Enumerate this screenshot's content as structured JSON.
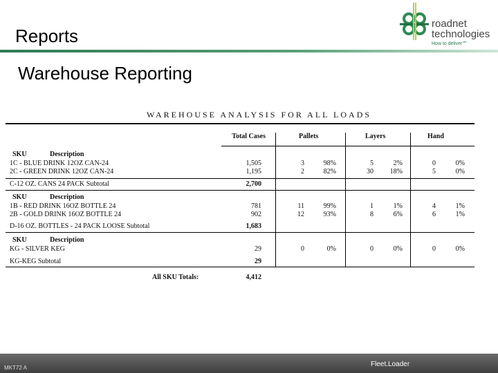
{
  "header": {
    "title": "Reports",
    "subtitle": "Warehouse Reporting"
  },
  "logo": {
    "name": "roadnet",
    "line2": "technologies",
    "tagline": "How to deliver℠",
    "brand_color": "#2e7a55"
  },
  "report": {
    "title": "WAREHOUSE ANALYSIS FOR ALL LOADS",
    "columns": [
      "Total Cases",
      "Pallets",
      "Layers",
      "Hand"
    ],
    "sku_label": "SKU",
    "desc_label": "Description",
    "groups": [
      {
        "rows": [
          {
            "desc": "1C - BLUE DRINK 12OZ CAN-24",
            "cases": "1,505",
            "pallets": "3",
            "pallets_pct": "98%",
            "layers": "5",
            "layers_pct": "2%",
            "hand": "0",
            "hand_pct": "0%"
          },
          {
            "desc": "2C - GREEN DRINK 12OZ CAN-24",
            "cases": "1,195",
            "pallets": "2",
            "pallets_pct": "82%",
            "layers": "30",
            "layers_pct": "18%",
            "hand": "5",
            "hand_pct": "0%"
          }
        ],
        "subtotal_label": "C-12 OZ. CANS 24 PACK Subtotal",
        "subtotal": "2,700"
      },
      {
        "rows": [
          {
            "desc": "1B - RED DRINK 16OZ BOTTLE 24",
            "cases": "781",
            "pallets": "11",
            "pallets_pct": "99%",
            "layers": "1",
            "layers_pct": "1%",
            "hand": "4",
            "hand_pct": "1%"
          },
          {
            "desc": "2B - GOLD DRINK 16OZ BOTTLE 24",
            "cases": "902",
            "pallets": "12",
            "pallets_pct": "93%",
            "layers": "8",
            "layers_pct": "6%",
            "hand": "6",
            "hand_pct": "1%"
          }
        ],
        "subtotal_label": "D-16 OZ. BOTTLES - 24 PACK LOOSE Subtotal",
        "subtotal": "1,683"
      },
      {
        "rows": [
          {
            "desc": "KG - SILVER KEG",
            "cases": "29",
            "pallets": "0",
            "pallets_pct": "0%",
            "layers": "0",
            "layers_pct": "0%",
            "hand": "0",
            "hand_pct": "0%"
          }
        ],
        "subtotal_label": "KG-KEG Subtotal",
        "subtotal": "29"
      }
    ],
    "totals_label": "All SKU Totals:",
    "totals": "4,412"
  },
  "footer": {
    "left": "MKT72 A",
    "center": "Fleet.Loader"
  }
}
